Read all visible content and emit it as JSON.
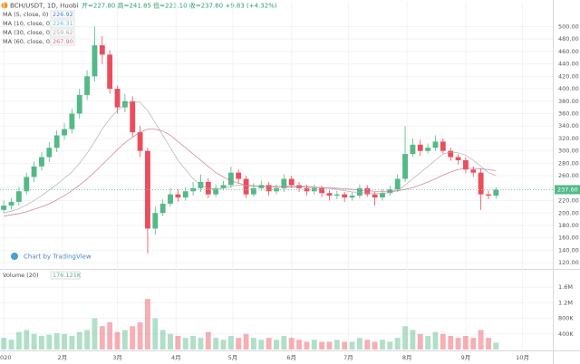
{
  "header": {
    "symbol": "BCH/USDT, 1D, Huobi",
    "ohlc": "开=227.80 高=241.85 低=223.10 收=237.60 +9.83 (+4.32%)",
    "watermark": "Chart by TradingView"
  },
  "chart_data": {
    "type": "candlestick",
    "up_color": "#53b987",
    "down_color": "#eb4d5c",
    "x": [
      0,
      4,
      8,
      12,
      16,
      20,
      24,
      28,
      32,
      36,
      40,
      44,
      48,
      52,
      56,
      60,
      64,
      68,
      72,
      76,
      80,
      84,
      88,
      92,
      96,
      100,
      104,
      108,
      112,
      116,
      120,
      124,
      128,
      132,
      136,
      140,
      144,
      148,
      152,
      156,
      160,
      164,
      168,
      172,
      176,
      180,
      184,
      188,
      192,
      196,
      200,
      204,
      208,
      212,
      216,
      220,
      224,
      228,
      232,
      236,
      240,
      244,
      248,
      252,
      256,
      260
    ],
    "open": [
      205,
      212,
      218,
      235,
      258,
      275,
      290,
      305,
      325,
      335,
      360,
      390,
      420,
      470,
      455,
      400,
      370,
      380,
      330,
      300,
      175,
      200,
      215,
      230,
      225,
      235,
      240,
      250,
      230,
      240,
      245,
      265,
      255,
      230,
      240,
      245,
      235,
      240,
      255,
      245,
      240,
      235,
      240,
      232,
      228,
      230,
      225,
      228,
      240,
      230,
      225,
      232,
      238,
      255,
      295,
      310,
      300,
      305,
      315,
      300,
      290,
      285,
      270,
      265,
      230,
      228
    ],
    "high": [
      220,
      224,
      242,
      265,
      283,
      298,
      314,
      333,
      345,
      368,
      400,
      430,
      500,
      485,
      462,
      405,
      392,
      388,
      340,
      305,
      210,
      222,
      240,
      238,
      242,
      250,
      262,
      256,
      246,
      252,
      275,
      270,
      260,
      248,
      252,
      250,
      246,
      262,
      260,
      250,
      246,
      246,
      244,
      236,
      236,
      234,
      233,
      246,
      245,
      234,
      238,
      244,
      262,
      340,
      320,
      318,
      312,
      325,
      320,
      305,
      295,
      290,
      275,
      272,
      236,
      241.85
    ],
    "low": [
      200,
      206,
      212,
      230,
      250,
      268,
      282,
      298,
      318,
      328,
      352,
      382,
      412,
      440,
      392,
      360,
      362,
      322,
      290,
      135,
      165,
      195,
      210,
      218,
      220,
      228,
      234,
      224,
      226,
      236,
      240,
      248,
      224,
      226,
      236,
      228,
      230,
      234,
      240,
      234,
      228,
      230,
      226,
      220,
      222,
      218,
      220,
      224,
      226,
      212,
      220,
      228,
      234,
      250,
      290,
      292,
      296,
      300,
      296,
      284,
      278,
      264,
      258,
      205,
      222,
      223.1
    ],
    "close": [
      212,
      218,
      235,
      258,
      275,
      290,
      305,
      325,
      335,
      360,
      390,
      420,
      470,
      455,
      400,
      370,
      380,
      330,
      300,
      175,
      200,
      215,
      230,
      225,
      235,
      240,
      250,
      230,
      240,
      245,
      265,
      255,
      230,
      240,
      245,
      235,
      240,
      255,
      245,
      240,
      235,
      240,
      232,
      228,
      230,
      225,
      228,
      240,
      230,
      225,
      232,
      238,
      255,
      295,
      310,
      300,
      305,
      315,
      300,
      290,
      285,
      270,
      265,
      230,
      228,
      237.6
    ],
    "volume": [
      300000,
      250000,
      450000,
      500000,
      400000,
      350000,
      380000,
      420000,
      400000,
      350000,
      450000,
      500000,
      800000,
      600000,
      700000,
      450000,
      500000,
      600000,
      700000,
      1300000,
      800000,
      500000,
      400000,
      350000,
      300000,
      350000,
      300000,
      450000,
      300000,
      250000,
      350000,
      300000,
      400000,
      300000,
      250000,
      300000,
      250000,
      350000,
      300000,
      250000,
      200000,
      250000,
      200000,
      200000,
      250000,
      200000,
      200000,
      300000,
      250000,
      200000,
      250000,
      200000,
      300000,
      600000,
      500000,
      400000,
      350000,
      450000,
      400000,
      350000,
      300000,
      350000,
      300000,
      500000,
      300000,
      176121
    ],
    "price_tag": "237.60",
    "ma": [
      {
        "name": "MA (5, close, 0)",
        "value_label": "226.92",
        "color": "#3a7bd5"
      },
      {
        "name": "MA (10, close, 0)",
        "value_label": "226.31",
        "color": "#6bb5e0"
      },
      {
        "name": "MA (30, close, 0)",
        "value_label": "259.62",
        "color": "#a9a9a9",
        "values": [
          200,
          203,
          207,
          213,
          220,
          228,
          237,
          246,
          256,
          266,
          280,
          296,
          315,
          335,
          352,
          365,
          375,
          380,
          378,
          365,
          345,
          325,
          305,
          285,
          270,
          255,
          245,
          240,
          238,
          240,
          243,
          245,
          244,
          243,
          243,
          242,
          242,
          243,
          244,
          244,
          243,
          242,
          241,
          240,
          238,
          236,
          234,
          233,
          232,
          232,
          232,
          233,
          236,
          245,
          255,
          265,
          275,
          285,
          295,
          298,
          297,
          293,
          285,
          275,
          265,
          260
        ]
      },
      {
        "name": "MA (60, close, 0)",
        "value_label": "267.90",
        "color": "#c76b8f",
        "values": [
          195,
          197,
          199,
          202,
          206,
          210,
          215,
          221,
          228,
          236,
          245,
          255,
          266,
          278,
          290,
          302,
          313,
          322,
          330,
          335,
          335,
          332,
          325,
          315,
          305,
          295,
          285,
          275,
          265,
          258,
          252,
          248,
          245,
          244,
          243,
          243,
          243,
          242,
          242,
          242,
          242,
          241,
          241,
          240,
          240,
          239,
          238,
          237,
          236,
          235,
          235,
          235,
          236,
          238,
          241,
          245,
          250,
          255,
          261,
          266,
          270,
          272,
          272,
          271,
          270,
          268
        ]
      }
    ],
    "volume_title": "Volume (20)",
    "volume_label": "176.121K",
    "xlim": [
      -2,
      290
    ],
    "xticks": [
      {
        "value": 0,
        "label": "2020"
      },
      {
        "value": 31,
        "label": "2月"
      },
      {
        "value": 60,
        "label": "3月"
      },
      {
        "value": 91,
        "label": "4月"
      },
      {
        "value": 121,
        "label": "5月"
      },
      {
        "value": 152,
        "label": "6月"
      },
      {
        "value": 182,
        "label": "7月"
      },
      {
        "value": 213,
        "label": "8月"
      },
      {
        "value": 244,
        "label": "9月"
      },
      {
        "value": 274,
        "label": "10月"
      }
    ],
    "ylim": [
      110,
      540
    ],
    "yticks": [
      {
        "value": 120,
        "label": "120.00"
      },
      {
        "value": 140,
        "label": "140.00"
      },
      {
        "value": 160,
        "label": "160.00"
      },
      {
        "value": 180,
        "label": "180.00"
      },
      {
        "value": 200,
        "label": "200.00"
      },
      {
        "value": 220,
        "label": "220.00"
      },
      {
        "value": 240,
        "label": "240.00"
      },
      {
        "value": 260,
        "label": "260.00"
      },
      {
        "value": 280,
        "label": "280.00"
      },
      {
        "value": 300,
        "label": "300.00"
      },
      {
        "value": 320,
        "label": "320.00"
      },
      {
        "value": 340,
        "label": "340.00"
      },
      {
        "value": 360,
        "label": "360.00"
      },
      {
        "value": 380,
        "label": "380.00"
      },
      {
        "value": 400,
        "label": "400.00"
      },
      {
        "value": 420,
        "label": "420.00"
      },
      {
        "value": 440,
        "label": "440.00"
      },
      {
        "value": 460,
        "label": "460.00"
      },
      {
        "value": 480,
        "label": "480.00"
      },
      {
        "value": 500,
        "label": "500.00"
      }
    ],
    "y2lim": [
      0,
      2000000
    ],
    "y2ticks": [
      {
        "value": 400000,
        "label": "400K"
      },
      {
        "value": 800000,
        "label": "800K"
      },
      {
        "value": 1200000,
        "label": "1.2M"
      },
      {
        "value": 1600000,
        "label": "1.6M"
      }
    ]
  }
}
